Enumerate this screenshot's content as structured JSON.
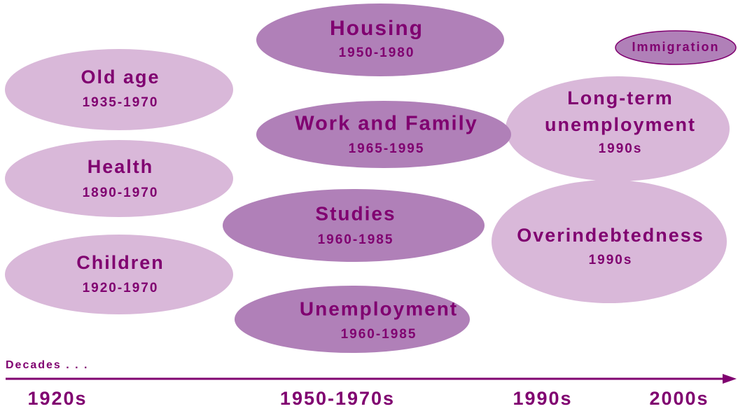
{
  "nodes": [
    {
      "label": "Housing",
      "years": "1950-1980"
    },
    {
      "label": "Immigration"
    },
    {
      "label": "Old age",
      "years": "1935-1970"
    },
    {
      "label": "Long-term",
      "label2": "unemployment",
      "years": "1990s"
    },
    {
      "label": "Work and Family",
      "years": "1965-1995"
    },
    {
      "label": "Health",
      "years": "1890-1970"
    },
    {
      "label": "Studies",
      "years": "1960-1985"
    },
    {
      "label": "Overindebtedness",
      "years": "1990s"
    },
    {
      "label": "Children",
      "years": "1920-1970"
    },
    {
      "label": "Unemployment",
      "years": "1960-1985"
    }
  ],
  "axis": {
    "title": "Decades . . .",
    "labels": [
      "1920s",
      "1950-1970s",
      "1990s",
      "2000s"
    ]
  }
}
